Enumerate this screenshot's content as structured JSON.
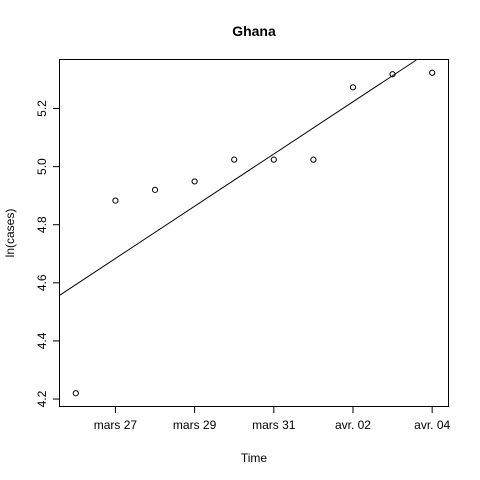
{
  "chart_data": {
    "type": "scatter",
    "title": "Ghana",
    "xlabel": "Time",
    "ylabel": "ln(cases)",
    "x": [
      "2020-03-26",
      "2020-03-27",
      "2020-03-28",
      "2020-03-29",
      "2020-03-30",
      "2020-03-31",
      "2020-04-01",
      "2020-04-02",
      "2020-04-03",
      "2020-04-04"
    ],
    "values": [
      4.22,
      4.883,
      4.92,
      4.949,
      5.024,
      5.024,
      5.024,
      5.273,
      5.318,
      5.323
    ],
    "xlim": [
      "2020-03-25.6",
      "2020-04-04.4"
    ],
    "ylim": [
      4.176,
      5.367
    ],
    "x_ticks": [
      {
        "date": "2020-03-27",
        "label": "mars 27"
      },
      {
        "date": "2020-03-29",
        "label": "mars 29"
      },
      {
        "date": "2020-03-31",
        "label": "mars 31"
      },
      {
        "date": "2020-04-02",
        "label": "avr. 02"
      },
      {
        "date": "2020-04-04",
        "label": "avr. 04"
      }
    ],
    "y_ticks": [
      4.2,
      4.4,
      4.6,
      4.8,
      5.0,
      5.2
    ],
    "y_tick_labels": [
      "4.2",
      "4.4",
      "4.6",
      "4.8",
      "5.0",
      "5.2"
    ],
    "fit_line": {
      "from": {
        "date": "2020-03-25.6",
        "value": 4.558
      },
      "to": {
        "date": "2020-04-03.6",
        "value": 5.367
      }
    },
    "grid": false,
    "legend": "none"
  }
}
